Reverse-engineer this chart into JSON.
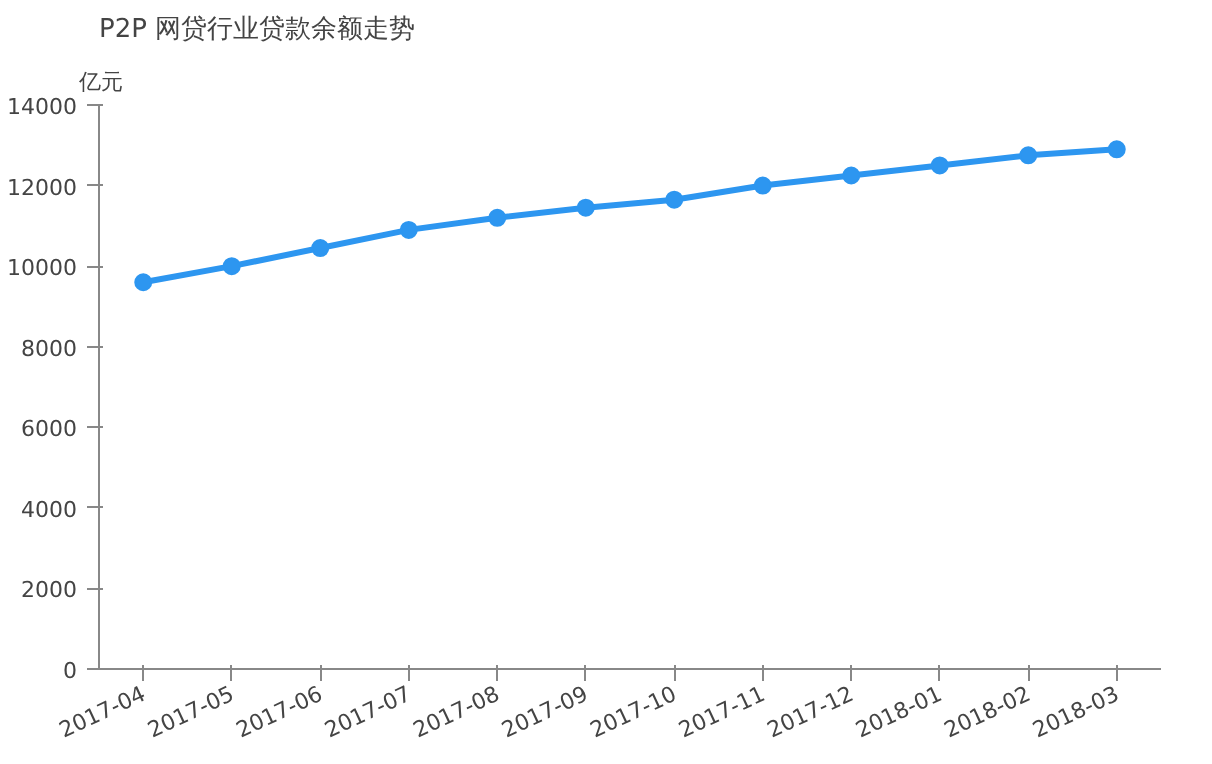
{
  "chart_data": {
    "type": "line",
    "title": "P2P 网贷行业贷款余额走势",
    "ylabel": "亿元",
    "categories": [
      "2017-04",
      "2017-05",
      "2017-06",
      "2017-07",
      "2017-08",
      "2017-09",
      "2017-10",
      "2017-11",
      "2017-12",
      "2018-01",
      "2018-02",
      "2018-03"
    ],
    "series": [
      {
        "color": "#2d96f0",
        "values": [
          9600,
          10000,
          10450,
          10900,
          11200,
          11450,
          11650,
          12000,
          12250,
          12500,
          12750,
          12900
        ]
      }
    ],
    "ylim": [
      0,
      14000
    ],
    "yticks": [
      0,
      2000,
      4000,
      6000,
      8000,
      10000,
      12000,
      14000
    ],
    "grid": false,
    "marker": "circle",
    "line_style": "solid"
  }
}
